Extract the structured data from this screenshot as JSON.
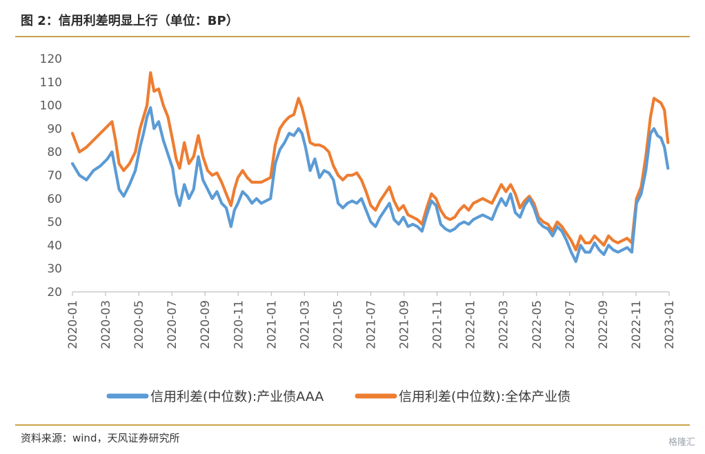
{
  "title": "图 2：信用利差明显上行（单位：BP）",
  "source": "资料来源：wind，天风证券研究所",
  "watermark": "格隆汇",
  "chart_data": {
    "type": "line",
    "y_ticks": [
      "20",
      "30",
      "40",
      "50",
      "60",
      "70",
      "80",
      "90",
      "100",
      "110",
      "120"
    ],
    "ylim": [
      20,
      120
    ],
    "x_ticks": [
      "2020-01",
      "2020-03",
      "2020-05",
      "2020-07",
      "2020-09",
      "2020-11",
      "2021-01",
      "2021-03",
      "2021-05",
      "2021-07",
      "2021-09",
      "2021-11",
      "2022-01",
      "2022-03",
      "2022-05",
      "2022-07",
      "2022-09",
      "2022-11",
      "2023-01"
    ],
    "legend_position": "bottom",
    "grid": false,
    "series": [
      {
        "name": "信用利差(中位数):产业债AAA",
        "color": "#5b9bd5",
        "points": [
          [
            0.0,
            75
          ],
          [
            0.3,
            70
          ],
          [
            0.6,
            68
          ],
          [
            0.9,
            72
          ],
          [
            1.2,
            74
          ],
          [
            1.5,
            77
          ],
          [
            1.7,
            80
          ],
          [
            1.85,
            72
          ],
          [
            2.0,
            64
          ],
          [
            2.2,
            61
          ],
          [
            2.45,
            66
          ],
          [
            2.7,
            72
          ],
          [
            2.9,
            82
          ],
          [
            3.05,
            88
          ],
          [
            3.2,
            95
          ],
          [
            3.35,
            99
          ],
          [
            3.5,
            90
          ],
          [
            3.7,
            93
          ],
          [
            3.9,
            85
          ],
          [
            4.1,
            79
          ],
          [
            4.3,
            73
          ],
          [
            4.45,
            62
          ],
          [
            4.6,
            57
          ],
          [
            4.8,
            66
          ],
          [
            5.0,
            60
          ],
          [
            5.2,
            64
          ],
          [
            5.4,
            78
          ],
          [
            5.6,
            68
          ],
          [
            5.8,
            64
          ],
          [
            6.0,
            60
          ],
          [
            6.2,
            63
          ],
          [
            6.4,
            58
          ],
          [
            6.6,
            56
          ],
          [
            6.8,
            48
          ],
          [
            6.95,
            55
          ],
          [
            7.1,
            58
          ],
          [
            7.3,
            63
          ],
          [
            7.5,
            61
          ],
          [
            7.7,
            58
          ],
          [
            7.9,
            60
          ],
          [
            8.1,
            58
          ],
          [
            8.3,
            59
          ],
          [
            8.5,
            60
          ],
          [
            8.7,
            75
          ],
          [
            8.9,
            81
          ],
          [
            9.1,
            84
          ],
          [
            9.3,
            88
          ],
          [
            9.5,
            87
          ],
          [
            9.7,
            90
          ],
          [
            9.85,
            88
          ],
          [
            10.0,
            82
          ],
          [
            10.2,
            72
          ],
          [
            10.4,
            77
          ],
          [
            10.6,
            69
          ],
          [
            10.8,
            72
          ],
          [
            11.0,
            71
          ],
          [
            11.2,
            68
          ],
          [
            11.4,
            58
          ],
          [
            11.6,
            56
          ],
          [
            11.8,
            58
          ],
          [
            12.0,
            59
          ],
          [
            12.2,
            58
          ],
          [
            12.4,
            60
          ],
          [
            12.6,
            55
          ],
          [
            12.8,
            50
          ],
          [
            13.0,
            48
          ],
          [
            13.2,
            52
          ],
          [
            13.4,
            55
          ],
          [
            13.6,
            58
          ],
          [
            13.8,
            51
          ],
          [
            14.0,
            49
          ],
          [
            14.2,
            52
          ],
          [
            14.4,
            48
          ],
          [
            14.6,
            49
          ],
          [
            14.8,
            48
          ],
          [
            15.0,
            46
          ],
          [
            15.2,
            53
          ],
          [
            15.4,
            59
          ],
          [
            15.6,
            57
          ],
          [
            15.8,
            49
          ],
          [
            16.0,
            47
          ],
          [
            16.2,
            46
          ],
          [
            16.4,
            47
          ],
          [
            16.6,
            49
          ],
          [
            16.8,
            50
          ],
          [
            17.0,
            49
          ],
          [
            17.2,
            51
          ],
          [
            17.4,
            52
          ],
          [
            17.6,
            53
          ],
          [
            17.8,
            52
          ],
          [
            18.0,
            51
          ],
          [
            18.2,
            56
          ],
          [
            18.4,
            60
          ],
          [
            18.6,
            57
          ],
          [
            18.8,
            62
          ],
          [
            19.0,
            54
          ],
          [
            19.2,
            52
          ],
          [
            19.4,
            57
          ],
          [
            19.6,
            60
          ],
          [
            19.8,
            56
          ],
          [
            20.0,
            50
          ],
          [
            20.2,
            48
          ],
          [
            20.4,
            47
          ],
          [
            20.6,
            44
          ],
          [
            20.8,
            48
          ],
          [
            21.0,
            46
          ],
          [
            21.2,
            42
          ],
          [
            21.4,
            37
          ],
          [
            21.6,
            33
          ],
          [
            21.8,
            40
          ],
          [
            22.0,
            37
          ],
          [
            22.2,
            37
          ],
          [
            22.4,
            41
          ],
          [
            22.6,
            38
          ],
          [
            22.8,
            36
          ],
          [
            23.0,
            40
          ],
          [
            23.2,
            38
          ],
          [
            23.4,
            37
          ],
          [
            23.6,
            38
          ],
          [
            23.8,
            39
          ],
          [
            24.0,
            37
          ],
          [
            24.2,
            58
          ],
          [
            24.4,
            62
          ],
          [
            24.6,
            72
          ],
          [
            24.8,
            88
          ],
          [
            24.95,
            90
          ],
          [
            25.1,
            87
          ],
          [
            25.25,
            86
          ],
          [
            25.4,
            82
          ],
          [
            25.55,
            73
          ]
        ]
      },
      {
        "name": "信用利差(中位数):全体产业债",
        "color": "#ed7d31",
        "points": [
          [
            0.0,
            88
          ],
          [
            0.3,
            80
          ],
          [
            0.6,
            82
          ],
          [
            0.9,
            85
          ],
          [
            1.2,
            88
          ],
          [
            1.5,
            91
          ],
          [
            1.7,
            93
          ],
          [
            1.85,
            85
          ],
          [
            2.0,
            75
          ],
          [
            2.2,
            72
          ],
          [
            2.45,
            75
          ],
          [
            2.7,
            80
          ],
          [
            2.9,
            90
          ],
          [
            3.05,
            95
          ],
          [
            3.2,
            100
          ],
          [
            3.35,
            114
          ],
          [
            3.5,
            106
          ],
          [
            3.7,
            107
          ],
          [
            3.9,
            100
          ],
          [
            4.1,
            95
          ],
          [
            4.3,
            85
          ],
          [
            4.45,
            77
          ],
          [
            4.6,
            73
          ],
          [
            4.8,
            84
          ],
          [
            5.0,
            75
          ],
          [
            5.2,
            78
          ],
          [
            5.4,
            87
          ],
          [
            5.6,
            78
          ],
          [
            5.8,
            72
          ],
          [
            6.0,
            70
          ],
          [
            6.2,
            71
          ],
          [
            6.4,
            67
          ],
          [
            6.6,
            62
          ],
          [
            6.8,
            57
          ],
          [
            6.95,
            64
          ],
          [
            7.1,
            69
          ],
          [
            7.3,
            72
          ],
          [
            7.5,
            69
          ],
          [
            7.7,
            67
          ],
          [
            7.9,
            67
          ],
          [
            8.1,
            67
          ],
          [
            8.3,
            68
          ],
          [
            8.5,
            69
          ],
          [
            8.7,
            83
          ],
          [
            8.9,
            90
          ],
          [
            9.1,
            93
          ],
          [
            9.3,
            95
          ],
          [
            9.5,
            96
          ],
          [
            9.7,
            103
          ],
          [
            9.85,
            99
          ],
          [
            10.0,
            93
          ],
          [
            10.2,
            84
          ],
          [
            10.4,
            83
          ],
          [
            10.6,
            83
          ],
          [
            10.8,
            82
          ],
          [
            11.0,
            80
          ],
          [
            11.2,
            74
          ],
          [
            11.4,
            70
          ],
          [
            11.6,
            68
          ],
          [
            11.8,
            70
          ],
          [
            12.0,
            70
          ],
          [
            12.2,
            71
          ],
          [
            12.4,
            68
          ],
          [
            12.6,
            63
          ],
          [
            12.8,
            57
          ],
          [
            13.0,
            55
          ],
          [
            13.2,
            59
          ],
          [
            13.4,
            62
          ],
          [
            13.6,
            65
          ],
          [
            13.8,
            59
          ],
          [
            14.0,
            55
          ],
          [
            14.2,
            57
          ],
          [
            14.4,
            53
          ],
          [
            14.6,
            52
          ],
          [
            14.8,
            51
          ],
          [
            15.0,
            49
          ],
          [
            15.2,
            56
          ],
          [
            15.4,
            62
          ],
          [
            15.6,
            60
          ],
          [
            15.8,
            55
          ],
          [
            16.0,
            52
          ],
          [
            16.2,
            51
          ],
          [
            16.4,
            52
          ],
          [
            16.6,
            55
          ],
          [
            16.8,
            57
          ],
          [
            17.0,
            55
          ],
          [
            17.2,
            58
          ],
          [
            17.4,
            59
          ],
          [
            17.6,
            60
          ],
          [
            17.8,
            59
          ],
          [
            18.0,
            58
          ],
          [
            18.2,
            62
          ],
          [
            18.4,
            66
          ],
          [
            18.6,
            63
          ],
          [
            18.8,
            66
          ],
          [
            19.0,
            62
          ],
          [
            19.2,
            56
          ],
          [
            19.4,
            59
          ],
          [
            19.6,
            61
          ],
          [
            19.8,
            58
          ],
          [
            20.0,
            52
          ],
          [
            20.2,
            50
          ],
          [
            20.4,
            49
          ],
          [
            20.6,
            46
          ],
          [
            20.8,
            50
          ],
          [
            21.0,
            48
          ],
          [
            21.2,
            45
          ],
          [
            21.4,
            42
          ],
          [
            21.6,
            38
          ],
          [
            21.8,
            44
          ],
          [
            22.0,
            41
          ],
          [
            22.2,
            41
          ],
          [
            22.4,
            44
          ],
          [
            22.6,
            42
          ],
          [
            22.8,
            40
          ],
          [
            23.0,
            44
          ],
          [
            23.2,
            42
          ],
          [
            23.4,
            41
          ],
          [
            23.6,
            42
          ],
          [
            23.8,
            43
          ],
          [
            24.0,
            41
          ],
          [
            24.2,
            60
          ],
          [
            24.4,
            65
          ],
          [
            24.6,
            78
          ],
          [
            24.8,
            95
          ],
          [
            24.95,
            103
          ],
          [
            25.1,
            102
          ],
          [
            25.25,
            101
          ],
          [
            25.4,
            98
          ],
          [
            25.55,
            84
          ]
        ]
      }
    ]
  }
}
